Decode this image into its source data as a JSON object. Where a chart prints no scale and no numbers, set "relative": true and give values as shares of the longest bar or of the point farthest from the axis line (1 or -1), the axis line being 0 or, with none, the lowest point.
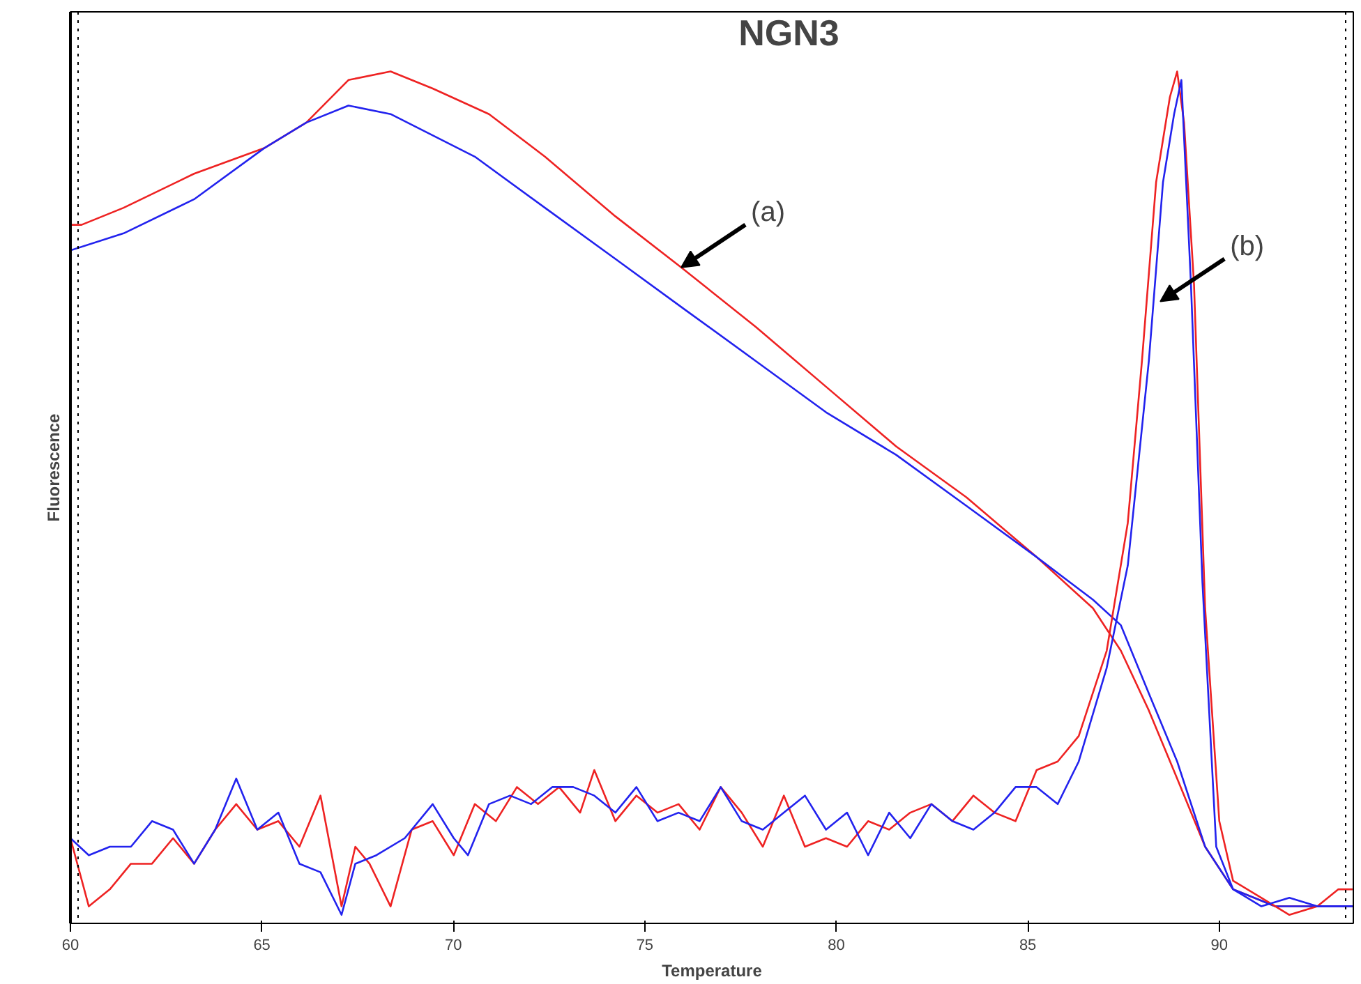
{
  "chart_data": {
    "type": "line",
    "title": "NGN3",
    "xlabel": "Temperature",
    "ylabel": "Fluorescence",
    "relative": true,
    "xlim": [
      60,
      93.5
    ],
    "xticks": [
      60,
      65,
      70,
      75,
      80,
      85,
      90
    ],
    "grid": false,
    "marker": "none",
    "line_style": "solid",
    "ref_lines": [
      {
        "axis": "x",
        "value": 60.2,
        "label": null,
        "line_style": "dotted",
        "color": "#000000"
      },
      {
        "axis": "x",
        "value": 93.3,
        "label": null,
        "line_style": "dotted",
        "color": "#000000"
      }
    ],
    "annotations": [
      {
        "text": "(a)",
        "x": 75.95,
        "y": 0.77
      },
      {
        "text": "(b)",
        "x": 88.46,
        "y": 0.73
      }
    ],
    "series": [
      {
        "color": "#ee2222",
        "x": [
          60,
          60.29,
          61.39,
          63.23,
          65.06,
          66.16,
          67.26,
          68.36,
          69.46,
          70.93,
          72.39,
          74.23,
          75.95,
          77.9,
          79.73,
          81.56,
          83.4,
          85.23,
          86.7,
          87.43,
          88.16,
          88.9,
          89.63,
          90.36,
          91.46,
          93.48
        ],
        "values": [
          0.82,
          0.82,
          0.84,
          0.88,
          0.91,
          0.94,
          0.99,
          1.0,
          0.98,
          0.95,
          0.9,
          0.83,
          0.77,
          0.7,
          0.63,
          0.56,
          0.5,
          0.43,
          0.37,
          0.32,
          0.25,
          0.17,
          0.09,
          0.04,
          0.02,
          0.02
        ]
      },
      {
        "color": "#2222ee",
        "x": [
          60,
          61.39,
          63.23,
          65.06,
          66.16,
          67.26,
          68.36,
          70.56,
          72.39,
          74.23,
          76.06,
          77.9,
          79.73,
          81.56,
          83.4,
          85.23,
          86.7,
          87.43,
          88.16,
          88.9,
          89.63,
          90.36,
          91.46,
          93.48
        ],
        "values": [
          0.79,
          0.81,
          0.85,
          0.91,
          0.94,
          0.96,
          0.95,
          0.9,
          0.84,
          0.78,
          0.72,
          0.66,
          0.6,
          0.55,
          0.49,
          0.43,
          0.38,
          0.35,
          0.27,
          0.19,
          0.09,
          0.04,
          0.02,
          0.02
        ]
      },
      {
        "color": "#ee2222",
        "x": [
          60,
          60.48,
          61.03,
          61.58,
          62.13,
          62.68,
          63.23,
          63.78,
          64.33,
          64.88,
          65.43,
          65.98,
          66.53,
          67.08,
          67.44,
          67.81,
          68.36,
          68.91,
          69.46,
          70.01,
          70.56,
          71.11,
          71.66,
          72.21,
          72.76,
          73.31,
          73.68,
          74.23,
          74.78,
          75.33,
          75.88,
          76.43,
          76.98,
          77.53,
          78.08,
          78.63,
          79.18,
          79.73,
          80.28,
          80.83,
          81.38,
          81.93,
          82.48,
          83.03,
          83.58,
          84.13,
          84.68,
          85.23,
          85.78,
          86.33,
          87.06,
          87.61,
          87.98,
          88.35,
          88.71,
          88.9,
          89.08,
          89.34,
          89.63,
          90,
          90.36,
          91.1,
          91.83,
          92.56,
          93.11,
          93.48
        ],
        "values": [
          0.1,
          0.02,
          0.04,
          0.07,
          0.07,
          0.1,
          0.07,
          0.11,
          0.14,
          0.11,
          0.12,
          0.09,
          0.15,
          0.02,
          0.09,
          0.07,
          0.02,
          0.11,
          0.12,
          0.08,
          0.14,
          0.12,
          0.16,
          0.14,
          0.16,
          0.13,
          0.18,
          0.12,
          0.15,
          0.13,
          0.14,
          0.11,
          0.16,
          0.13,
          0.09,
          0.15,
          0.09,
          0.1,
          0.09,
          0.12,
          0.11,
          0.13,
          0.14,
          0.12,
          0.15,
          0.13,
          0.12,
          0.18,
          0.19,
          0.22,
          0.32,
          0.47,
          0.66,
          0.87,
          0.97,
          1.0,
          0.94,
          0.75,
          0.37,
          0.12,
          0.05,
          0.03,
          0.01,
          0.02,
          0.04,
          0.04
        ]
      },
      {
        "color": "#2222ee",
        "x": [
          60,
          60.48,
          61.03,
          61.58,
          62.13,
          62.68,
          63.23,
          63.78,
          64.33,
          64.88,
          65.43,
          65.98,
          66.53,
          67.08,
          67.44,
          67.99,
          68.73,
          69.46,
          70.01,
          70.38,
          70.93,
          71.48,
          72.03,
          72.58,
          73.13,
          73.68,
          74.23,
          74.78,
          75.33,
          75.88,
          76.43,
          76.98,
          77.53,
          78.08,
          78.63,
          79.18,
          79.73,
          80.28,
          80.83,
          81.38,
          81.93,
          82.48,
          83.03,
          83.58,
          84.13,
          84.68,
          85.23,
          85.78,
          86.33,
          87.06,
          87.61,
          88.16,
          88.53,
          88.82,
          89.01,
          89.26,
          89.56,
          89.92,
          90.36,
          91.1,
          91.83,
          92.56,
          93.11,
          93.48
        ],
        "values": [
          0.1,
          0.08,
          0.09,
          0.09,
          0.12,
          0.11,
          0.07,
          0.11,
          0.17,
          0.11,
          0.13,
          0.07,
          0.06,
          0.01,
          0.07,
          0.08,
          0.1,
          0.14,
          0.1,
          0.08,
          0.14,
          0.15,
          0.14,
          0.16,
          0.16,
          0.15,
          0.13,
          0.16,
          0.12,
          0.13,
          0.12,
          0.16,
          0.12,
          0.11,
          0.13,
          0.15,
          0.11,
          0.13,
          0.08,
          0.13,
          0.1,
          0.14,
          0.12,
          0.11,
          0.13,
          0.16,
          0.16,
          0.14,
          0.19,
          0.3,
          0.42,
          0.66,
          0.87,
          0.95,
          0.99,
          0.75,
          0.4,
          0.09,
          0.04,
          0.02,
          0.03,
          0.02,
          0.02,
          0.02
        ]
      }
    ]
  }
}
